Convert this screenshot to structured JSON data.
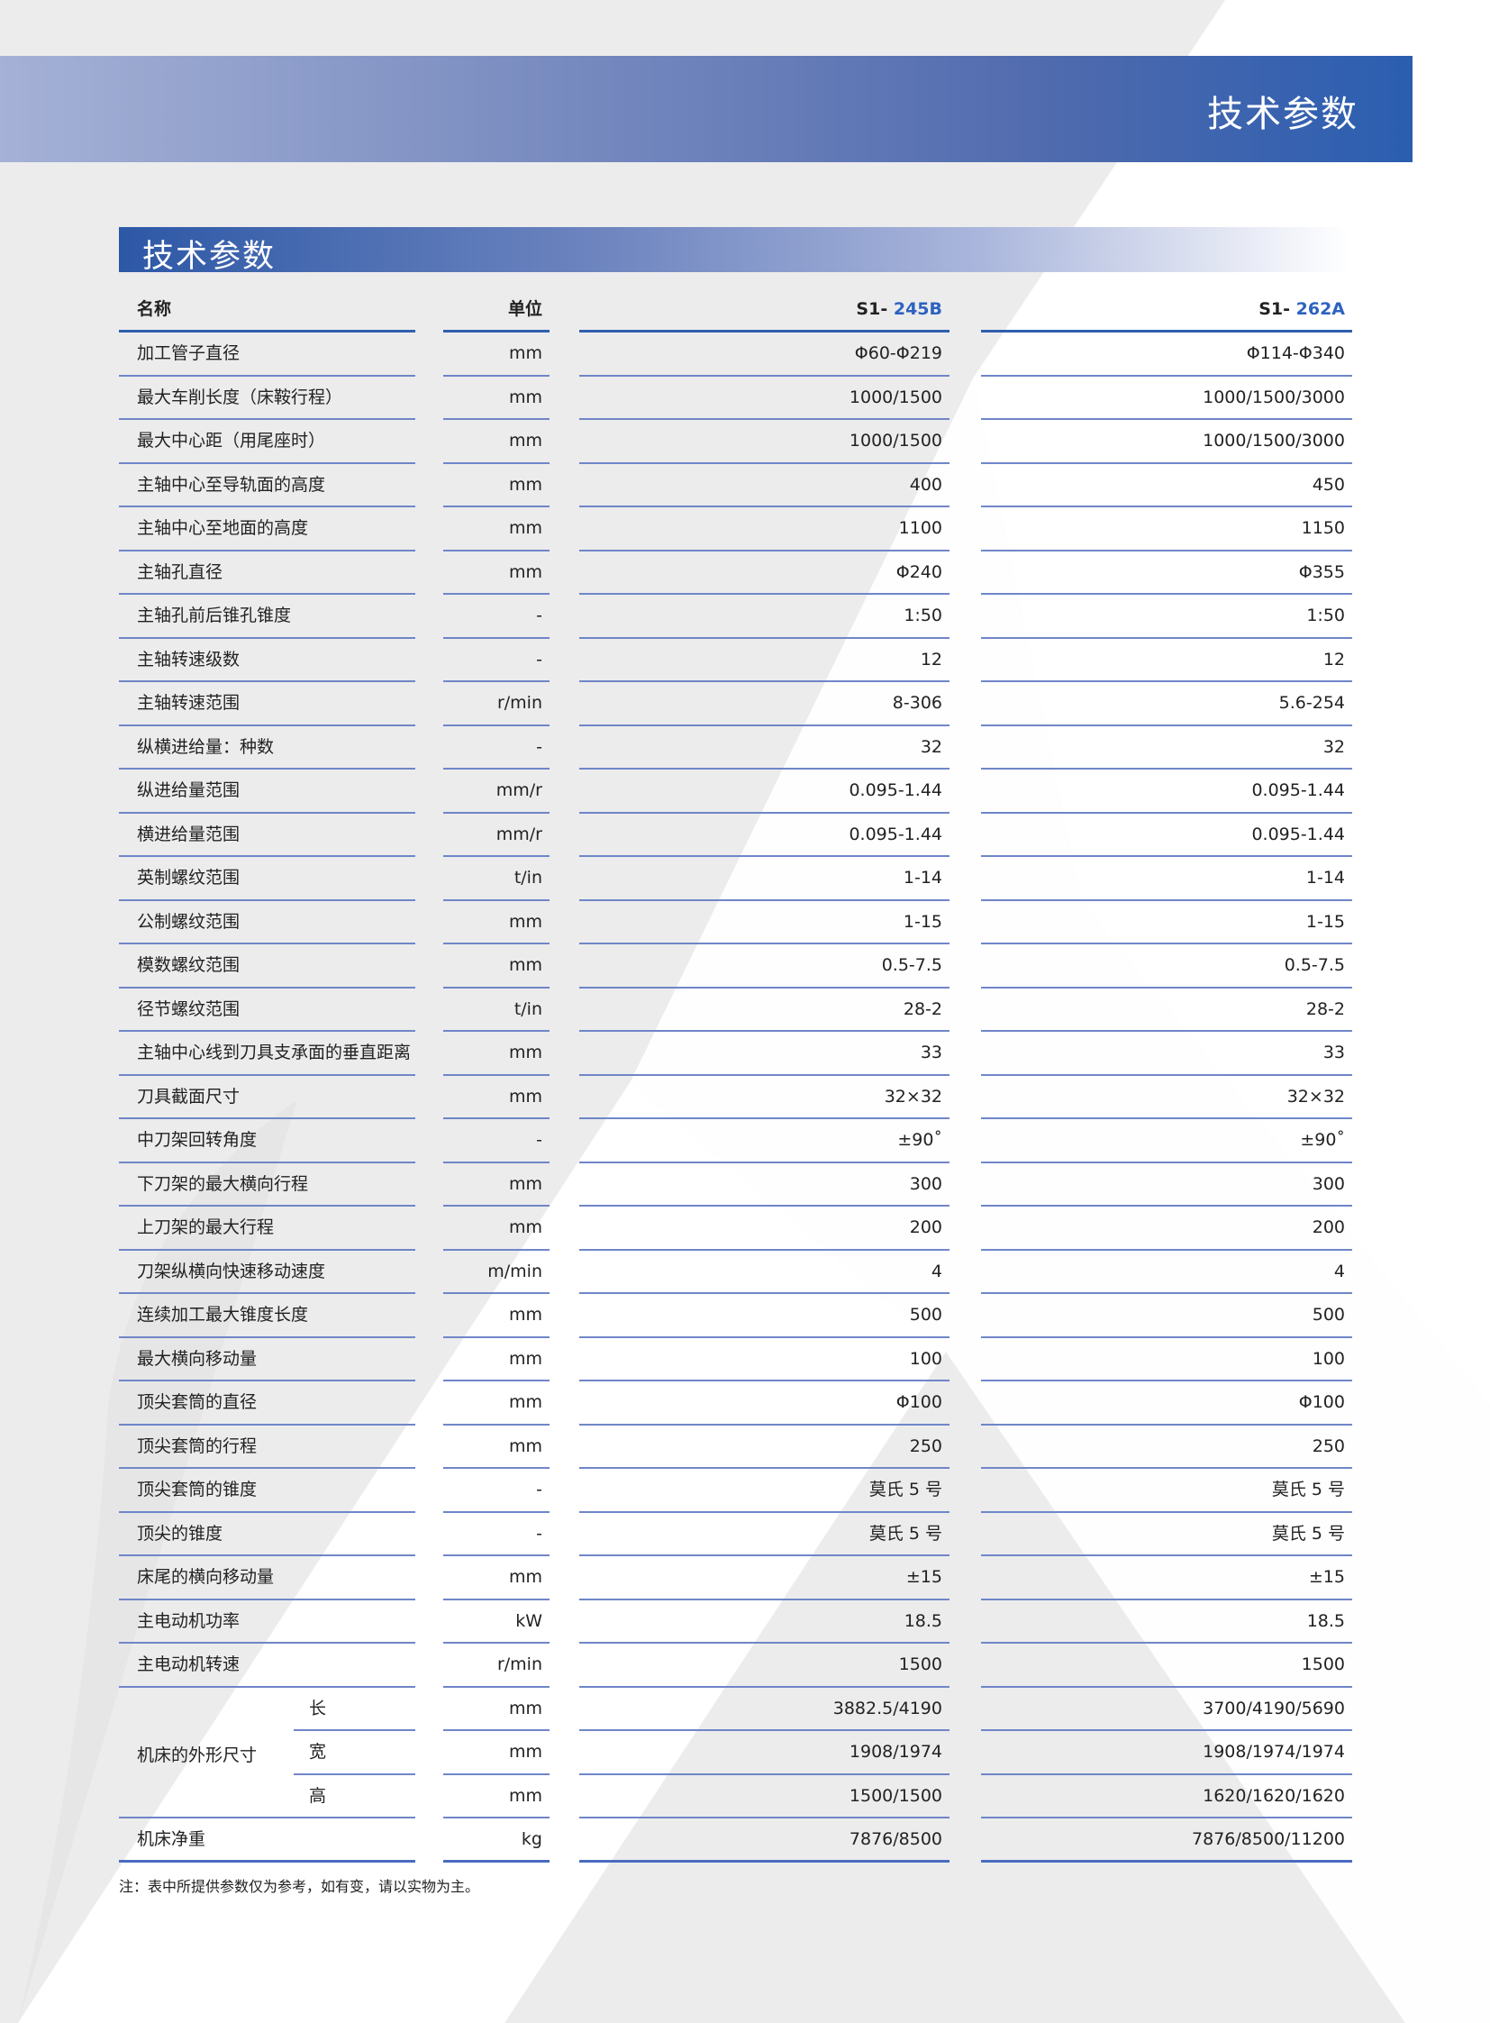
{
  "banner": {
    "title": "技术参数"
  },
  "section": {
    "title": "技术参数"
  },
  "table": {
    "headers": {
      "name": "名称",
      "unit": "单位",
      "model1_prefix": "S1-",
      "model1_code": "245B",
      "model2_prefix": "S1-",
      "model2_code": "262A"
    },
    "rows": [
      {
        "name": "加工管子直径",
        "unit": "mm",
        "v1": "Φ60-Φ219",
        "v2": "Φ114-Φ340"
      },
      {
        "name": "最大车削长度（床鞍行程）",
        "unit": "mm",
        "v1": "1000/1500",
        "v2": "1000/1500/3000"
      },
      {
        "name": "最大中心距（用尾座时）",
        "unit": "mm",
        "v1": "1000/1500",
        "v2": "1000/1500/3000"
      },
      {
        "name": "主轴中心至导轨面的高度",
        "unit": "mm",
        "v1": "400",
        "v2": "450"
      },
      {
        "name": "主轴中心至地面的高度",
        "unit": "mm",
        "v1": "1100",
        "v2": "1150"
      },
      {
        "name": "主轴孔直径",
        "unit": "mm",
        "v1": "Φ240",
        "v2": "Φ355"
      },
      {
        "name": "主轴孔前后锥孔锥度",
        "unit": "-",
        "v1": "1:50",
        "v2": "1:50"
      },
      {
        "name": "主轴转速级数",
        "unit": "-",
        "v1": "12",
        "v2": "12"
      },
      {
        "name": "主轴转速范围",
        "unit": "r/min",
        "v1": "8-306",
        "v2": "5.6-254"
      },
      {
        "name": "纵横进给量：种数",
        "unit": "-",
        "v1": "32",
        "v2": "32"
      },
      {
        "name": "纵进给量范围",
        "unit": "mm/r",
        "v1": "0.095-1.44",
        "v2": "0.095-1.44"
      },
      {
        "name": "横进给量范围",
        "unit": "mm/r",
        "v1": "0.095-1.44",
        "v2": "0.095-1.44"
      },
      {
        "name": "英制螺纹范围",
        "unit": "t/in",
        "v1": "1-14",
        "v2": "1-14"
      },
      {
        "name": "公制螺纹范围",
        "unit": "mm",
        "v1": "1-15",
        "v2": "1-15"
      },
      {
        "name": "模数螺纹范围",
        "unit": "mm",
        "v1": "0.5-7.5",
        "v2": "0.5-7.5"
      },
      {
        "name": "径节螺纹范围",
        "unit": "t/in",
        "v1": "28-2",
        "v2": "28-2"
      },
      {
        "name": "主轴中心线到刀具支承面的垂直距离",
        "unit": "mm",
        "v1": "33",
        "v2": "33"
      },
      {
        "name": "刀具截面尺寸",
        "unit": "mm",
        "v1": "32×32",
        "v2": "32×32"
      },
      {
        "name": "中刀架回转角度",
        "unit": "-",
        "v1": "±90˚",
        "v2": "±90˚"
      },
      {
        "name": "下刀架的最大横向行程",
        "unit": "mm",
        "v1": "300",
        "v2": "300"
      },
      {
        "name": "上刀架的最大行程",
        "unit": "mm",
        "v1": "200",
        "v2": "200"
      },
      {
        "name": "刀架纵横向快速移动速度",
        "unit": "m/min",
        "v1": "4",
        "v2": "4"
      },
      {
        "name": "连续加工最大锥度长度",
        "unit": "mm",
        "v1": "500",
        "v2": "500"
      },
      {
        "name": "最大横向移动量",
        "unit": "mm",
        "v1": "100",
        "v2": "100"
      },
      {
        "name": "顶尖套筒的直径",
        "unit": "mm",
        "v1": "Φ100",
        "v2": "Φ100"
      },
      {
        "name": "顶尖套筒的行程",
        "unit": "mm",
        "v1": "250",
        "v2": "250"
      },
      {
        "name": "顶尖套筒的锥度",
        "unit": "-",
        "v1": "莫氏 5 号",
        "v2": "莫氏 5 号"
      },
      {
        "name": "顶尖的锥度",
        "unit": "-",
        "v1": "莫氏 5 号",
        "v2": "莫氏 5 号"
      },
      {
        "name": "床尾的横向移动量",
        "unit": "mm",
        "v1": "±15",
        "v2": "±15"
      },
      {
        "name": "主电动机功率",
        "unit": "kW",
        "v1": "18.5",
        "v2": "18.5"
      },
      {
        "name": "主电动机转速",
        "unit": "r/min",
        "v1": "1500",
        "v2": "1500"
      }
    ],
    "dimensions": {
      "label": "机床的外形尺寸",
      "rows": [
        {
          "sub": "长",
          "unit": "mm",
          "v1": "3882.5/4190",
          "v2": "3700/4190/5690"
        },
        {
          "sub": "宽",
          "unit": "mm",
          "v1": "1908/1974",
          "v2": "1908/1974/1974"
        },
        {
          "sub": "高",
          "unit": "mm",
          "v1": "1500/1500",
          "v2": "1620/1620/1620"
        }
      ]
    },
    "weight": {
      "name": "机床净重",
      "unit": "kg",
      "v1": "7876/8500",
      "v2": "7876/8500/11200"
    }
  },
  "note": "注：表中所提供参数仅为参考，如有变，请以实物为主。",
  "colors": {
    "accent": "#2d62c0",
    "band": "#2b5eb0",
    "rule": "#6f86c8"
  }
}
